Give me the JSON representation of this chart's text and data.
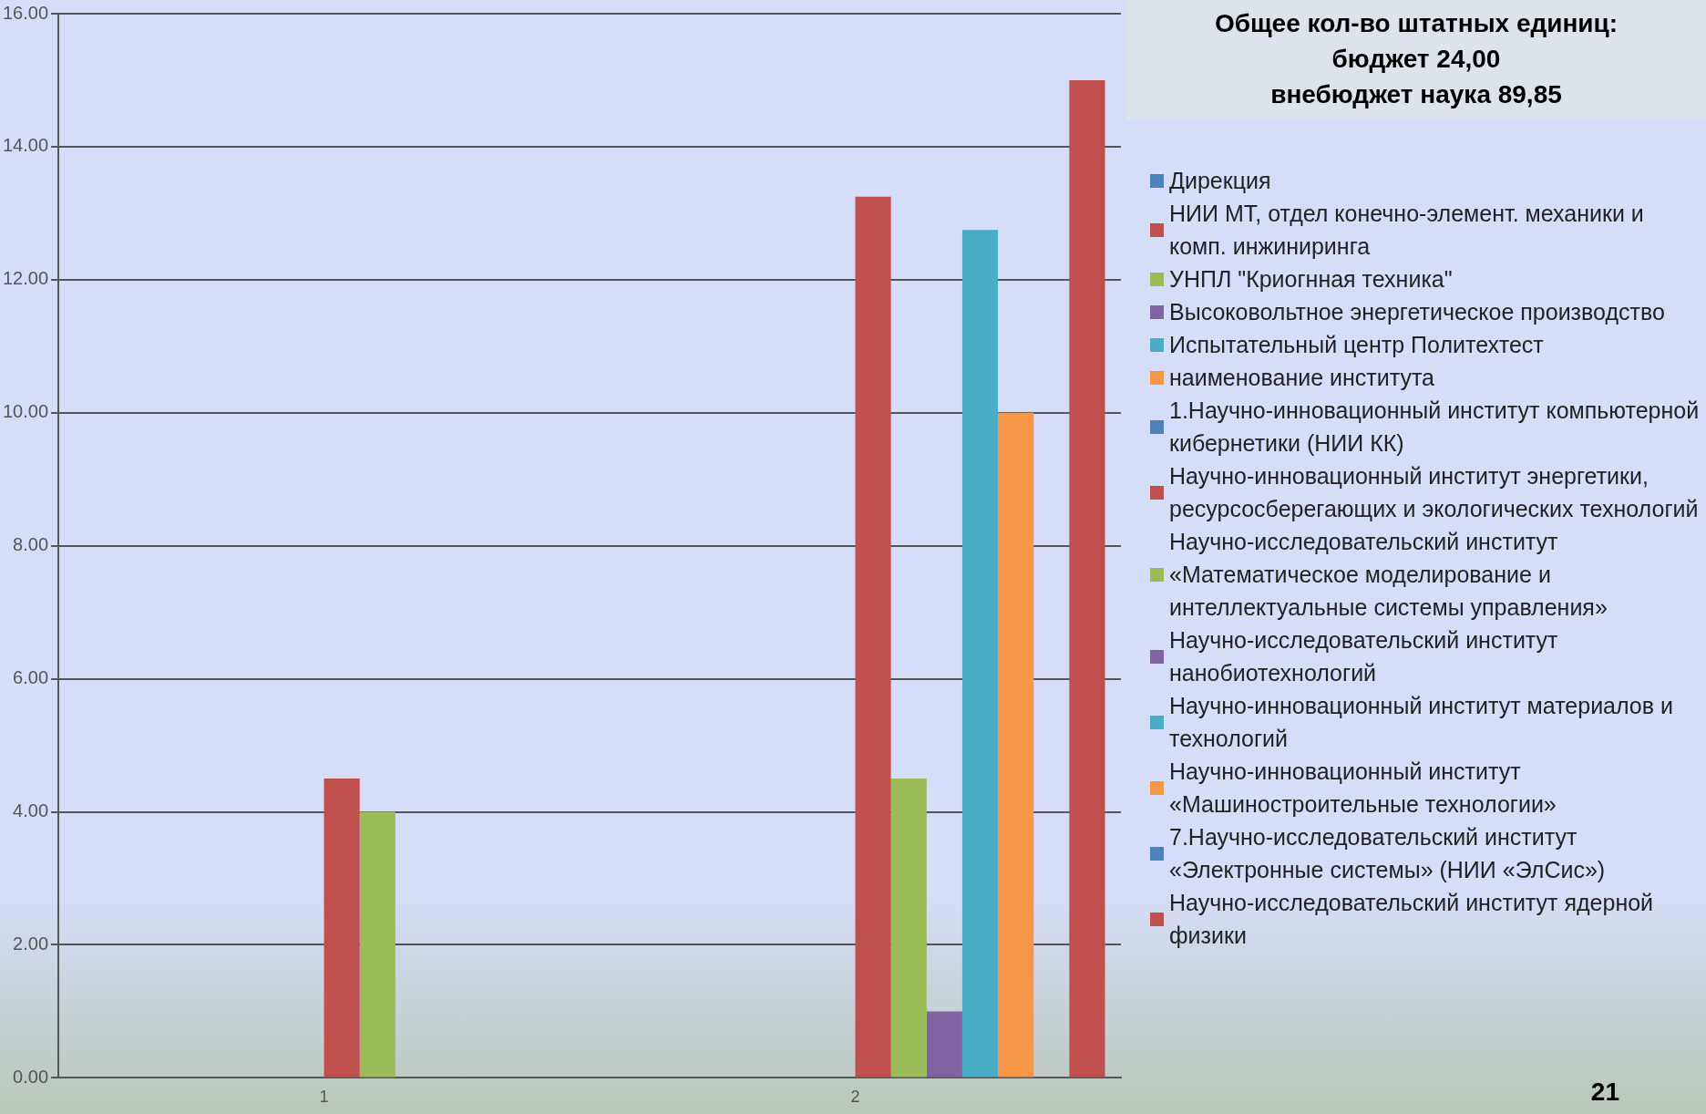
{
  "chart_data": {
    "type": "bar",
    "title": "Общее кол-во штатных единиц:",
    "subtitle": "бюджет 24,00\nвнебюджет наука 89,85",
    "annotations": [
      "21"
    ],
    "categories": [
      "1",
      "2"
    ],
    "series": [
      {
        "name": "Дирекция",
        "color": "#4f81bd",
        "values": [
          null,
          null
        ]
      },
      {
        "name": "НИИ МТ, отдел конечно-элемент. механики и комп. инжиниринга",
        "color": "#c0504d",
        "values": [
          null,
          null
        ]
      },
      {
        "name": "УНПЛ \"Криогнная техника\"",
        "color": "#9bbb59",
        "values": [
          null,
          null
        ]
      },
      {
        "name": "Высоковольтное энергетическое производство",
        "color": "#8064a2",
        "values": [
          null,
          null
        ]
      },
      {
        "name": "Испытательный центр Политехтест",
        "color": "#4bacc6",
        "values": [
          null,
          null
        ]
      },
      {
        "name": "наименование института",
        "color": "#f79646",
        "values": [
          null,
          null
        ]
      },
      {
        "name": "1.Научно-инновационный институт компьютерной кибернетики (НИИ КК)",
        "color": "#4f81bd",
        "values": [
          null,
          null
        ]
      },
      {
        "name": "Научно-инновационный институт энергетики, ресурсосберегающих и экологических технологий",
        "color": "#c0504d",
        "values": [
          4.5,
          13.25
        ]
      },
      {
        "name": "Научно-исследовательский институт «Математическое моделирование и интеллектуальные системы управления»",
        "color": "#9bbb59",
        "values": [
          4.0,
          4.5
        ]
      },
      {
        "name": "Научно-исследовательский институт нанобиотехнологий",
        "color": "#8064a2",
        "values": [
          null,
          1.0
        ]
      },
      {
        "name": "Научно-инновационный институт материалов и технологий",
        "color": "#4bacc6",
        "values": [
          null,
          12.75
        ]
      },
      {
        "name": "Научно-инновационный институт «Машиностроительные технологии»",
        "color": "#f79646",
        "values": [
          null,
          10.0
        ]
      },
      {
        "name": "7.Научно-исследовательский институт «Электронные системы» (НИИ «ЭлСис»)",
        "color": "#4f81bd",
        "values": [
          null,
          null
        ]
      },
      {
        "name": "Научно-исследовательский институт ядерной физики",
        "color": "#c0504d",
        "values": [
          null,
          15.0
        ]
      }
    ],
    "ylim": [
      0,
      16
    ],
    "yticks": [
      {
        "value": 0,
        "label": "0.00"
      },
      {
        "value": 2,
        "label": "2.00"
      },
      {
        "value": 4,
        "label": "4.00"
      },
      {
        "value": 6,
        "label": "6.00"
      },
      {
        "value": 8,
        "label": "8.00"
      },
      {
        "value": 10,
        "label": "10.00"
      },
      {
        "value": 12,
        "label": "12.00"
      },
      {
        "value": 14,
        "label": "14.00"
      },
      {
        "value": 16,
        "label": "16.00"
      }
    ],
    "grid": "y",
    "legend": "right"
  }
}
